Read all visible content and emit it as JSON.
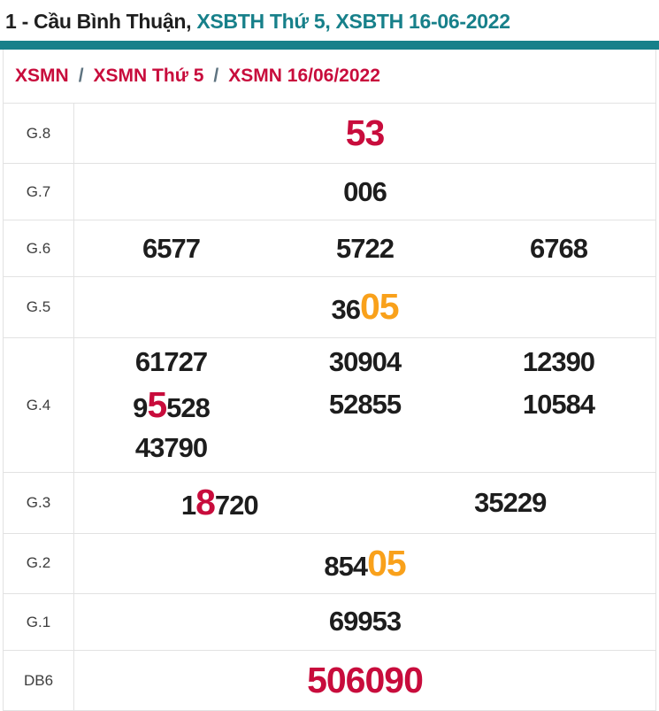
{
  "title": {
    "plain": "1 - Cầu Bình Thuận,",
    "link": "XSBTH Thứ 5, XSBTH 16-06-2022"
  },
  "breadcrumb": {
    "separator": "/",
    "items": [
      "XSMN",
      "XSMN Thứ 5",
      "XSMN 16/06/2022"
    ]
  },
  "colors": {
    "teal": "#17808A",
    "red": "#C80C3C",
    "orange": "#F9A11B",
    "border": "#E2E2E2",
    "title_text": "#1F1F1F",
    "number_text": "#1D1D1D",
    "breadcrumb_separator": "#5E7380"
  },
  "results_table": {
    "rows": [
      {
        "label": "G.8",
        "cols": 1,
        "numbers": [
          [
            {
              "t": "53",
              "color": "red",
              "big": true
            }
          ]
        ]
      },
      {
        "label": "G.7",
        "cols": 1,
        "numbers": [
          [
            {
              "t": "006"
            }
          ]
        ]
      },
      {
        "label": "G.6",
        "cols": 3,
        "numbers": [
          [
            {
              "t": "6577"
            }
          ],
          [
            {
              "t": "5722"
            }
          ],
          [
            {
              "t": "6768"
            }
          ]
        ]
      },
      {
        "label": "G.5",
        "cols": 1,
        "numbers": [
          [
            {
              "t": "36"
            },
            {
              "t": "05",
              "color": "orange",
              "big": true
            }
          ]
        ]
      },
      {
        "label": "G.4",
        "cols": 3,
        "numbers": [
          [
            {
              "t": "61727"
            }
          ],
          [
            {
              "t": "30904"
            }
          ],
          [
            {
              "t": "12390"
            }
          ],
          [
            {
              "t": "9"
            },
            {
              "t": "5",
              "color": "red",
              "big": true
            },
            {
              "t": "528"
            }
          ],
          [
            {
              "t": "52855"
            }
          ],
          [
            {
              "t": "10584"
            }
          ],
          [
            {
              "t": "43790"
            }
          ]
        ]
      },
      {
        "label": "G.3",
        "cols": 2,
        "numbers": [
          [
            {
              "t": "1"
            },
            {
              "t": "8",
              "color": "red",
              "big": true
            },
            {
              "t": "720"
            }
          ],
          [
            {
              "t": "35229"
            }
          ]
        ]
      },
      {
        "label": "G.2",
        "cols": 1,
        "numbers": [
          [
            {
              "t": "854"
            },
            {
              "t": "05",
              "color": "orange",
              "big": true
            }
          ]
        ]
      },
      {
        "label": "G.1",
        "cols": 1,
        "numbers": [
          [
            {
              "t": "69953"
            }
          ]
        ]
      },
      {
        "label": "DB6",
        "cols": 1,
        "numbers": [
          [
            {
              "t": "506090",
              "color": "red",
              "big": true
            }
          ]
        ]
      }
    ]
  }
}
